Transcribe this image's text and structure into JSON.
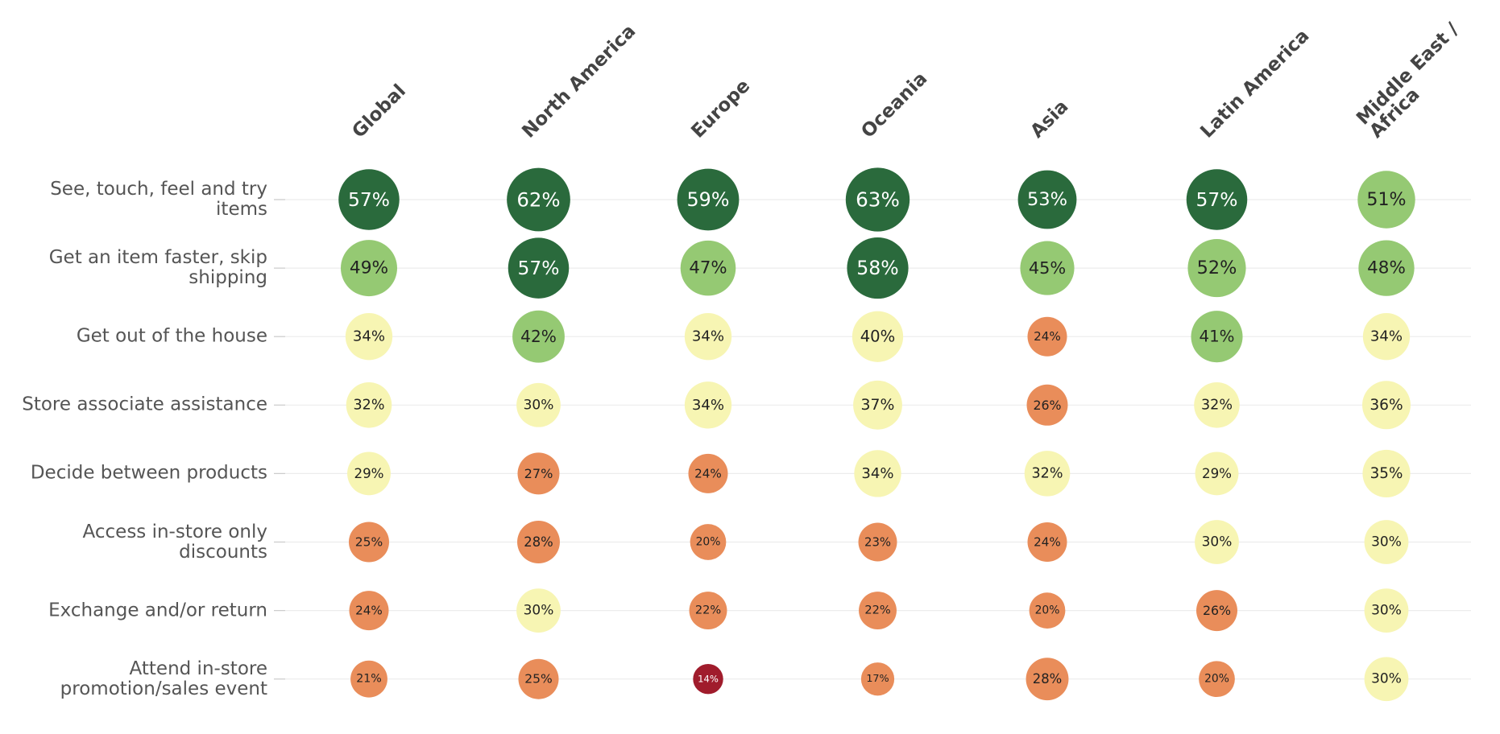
{
  "chart_data": {
    "type": "bubble-matrix",
    "categories": [
      "See, touch, feel and try items",
      "Get an item faster, skip shipping",
      "Get out of the house",
      "Store associate assistance",
      "Decide between products",
      "Access in-store only discounts",
      "Exchange and/or return",
      "Attend in-store promotion/sales event"
    ],
    "series": [
      {
        "name": "Global",
        "values": [
          57,
          49,
          34,
          32,
          29,
          25,
          24,
          21
        ],
        "value_labels": [
          "57%",
          "49%",
          "34%",
          "32%",
          "29%",
          "25%",
          "24%",
          "21%"
        ],
        "colors": [
          "#2a6a3c",
          "#95c973",
          "#f7f5b3",
          "#f7f5b3",
          "#f7f5b3",
          "#e98d5a",
          "#e98d5a",
          "#e98d5a"
        ]
      },
      {
        "name": "North America",
        "values": [
          62,
          57,
          42,
          30,
          27,
          28,
          30,
          25
        ],
        "value_labels": [
          "62%",
          "57%",
          "42%",
          "30%",
          "27%",
          "28%",
          "30%",
          "25%"
        ],
        "colors": [
          "#2a6a3c",
          "#2a6a3c",
          "#95c973",
          "#f7f5b3",
          "#e98d5a",
          "#e98d5a",
          "#f7f5b3",
          "#e98d5a"
        ]
      },
      {
        "name": "Europe",
        "values": [
          59,
          47,
          34,
          34,
          24,
          20,
          22,
          14
        ],
        "value_labels": [
          "59%",
          "47%",
          "34%",
          "34%",
          "24%",
          "20%",
          "22%",
          "14%"
        ],
        "colors": [
          "#2a6a3c",
          "#95c973",
          "#f7f5b3",
          "#f7f5b3",
          "#e98d5a",
          "#e98d5a",
          "#e98d5a",
          "#a01c2c"
        ]
      },
      {
        "name": "Oceania",
        "values": [
          63,
          58,
          40,
          37,
          34,
          23,
          22,
          17
        ],
        "value_labels": [
          "63%",
          "58%",
          "40%",
          "37%",
          "34%",
          "23%",
          "22%",
          "17%"
        ],
        "colors": [
          "#2a6a3c",
          "#2a6a3c",
          "#f7f5b3",
          "#f7f5b3",
          "#f7f5b3",
          "#e98d5a",
          "#e98d5a",
          "#e98d5a"
        ]
      },
      {
        "name": "Asia",
        "values": [
          53,
          45,
          24,
          26,
          32,
          24,
          20,
          28
        ],
        "value_labels": [
          "53%",
          "45%",
          "24%",
          "26%",
          "32%",
          "24%",
          "20%",
          "28%"
        ],
        "colors": [
          "#2a6a3c",
          "#95c973",
          "#e98d5a",
          "#e98d5a",
          "#f7f5b3",
          "#e98d5a",
          "#e98d5a",
          "#e98d5a"
        ]
      },
      {
        "name": "Latin America",
        "values": [
          57,
          52,
          41,
          32,
          29,
          30,
          26,
          20
        ],
        "value_labels": [
          "57%",
          "52%",
          "41%",
          "32%",
          "29%",
          "30%",
          "26%",
          "20%"
        ],
        "colors": [
          "#2a6a3c",
          "#95c973",
          "#95c973",
          "#f7f5b3",
          "#f7f5b3",
          "#f7f5b3",
          "#e98d5a",
          "#e98d5a"
        ]
      },
      {
        "name": "Middle East / Africa",
        "values": [
          51,
          48,
          34,
          36,
          35,
          30,
          30,
          30
        ],
        "value_labels": [
          "51%",
          "48%",
          "34%",
          "36%",
          "35%",
          "30%",
          "30%",
          "30%"
        ],
        "colors": [
          "#95c973",
          "#95c973",
          "#f7f5b3",
          "#f7f5b3",
          "#f7f5b3",
          "#f7f5b3",
          "#f7f5b3",
          "#f7f5b3"
        ]
      }
    ]
  }
}
